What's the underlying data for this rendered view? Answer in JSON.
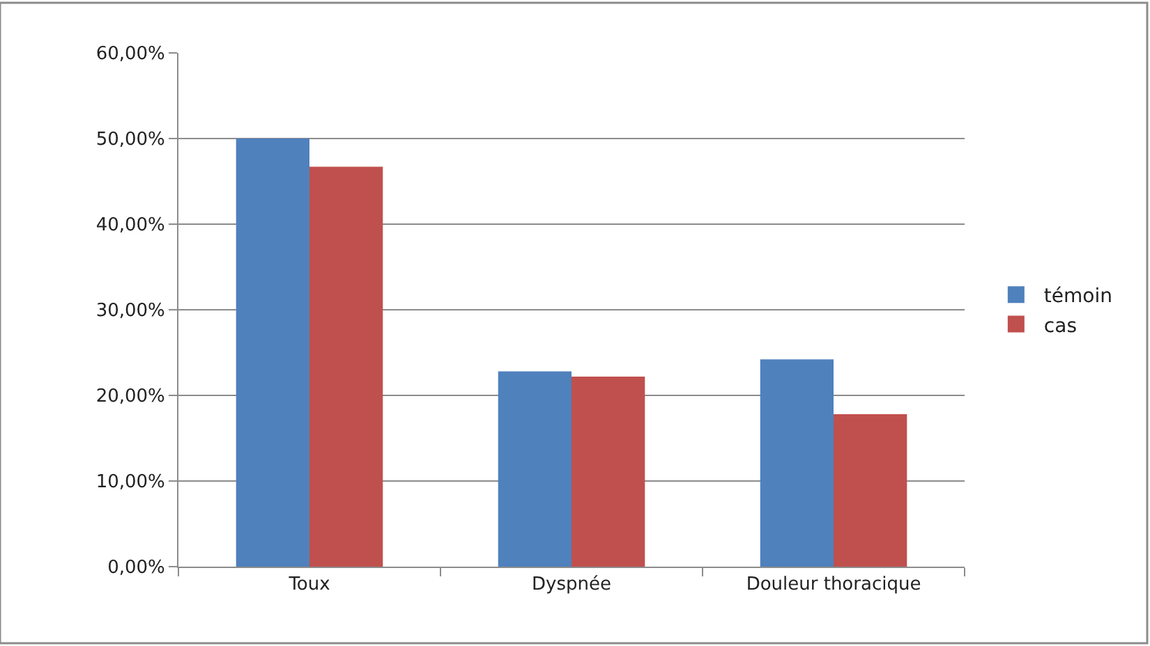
{
  "chart_data": {
    "type": "bar",
    "categories": [
      "Toux",
      "Dyspnée",
      "Douleur thoracique"
    ],
    "series": [
      {
        "name": "témoin",
        "color": "#4f81bd",
        "values": [
          50.0,
          22.8,
          24.2
        ]
      },
      {
        "name": "cas",
        "color": "#c0504d",
        "values": [
          46.7,
          22.2,
          17.8
        ]
      }
    ],
    "ylim": [
      0,
      60
    ],
    "yticks": [
      {
        "value": 0,
        "label": "0,00%"
      },
      {
        "value": 10,
        "label": "10,00%"
      },
      {
        "value": 20,
        "label": "20,00%"
      },
      {
        "value": 30,
        "label": "30,00%"
      },
      {
        "value": 40,
        "label": "40,00%"
      },
      {
        "value": 50,
        "label": "50,00%"
      },
      {
        "value": 60,
        "label": "60,00%"
      }
    ],
    "grid": "y",
    "legend": "right"
  }
}
